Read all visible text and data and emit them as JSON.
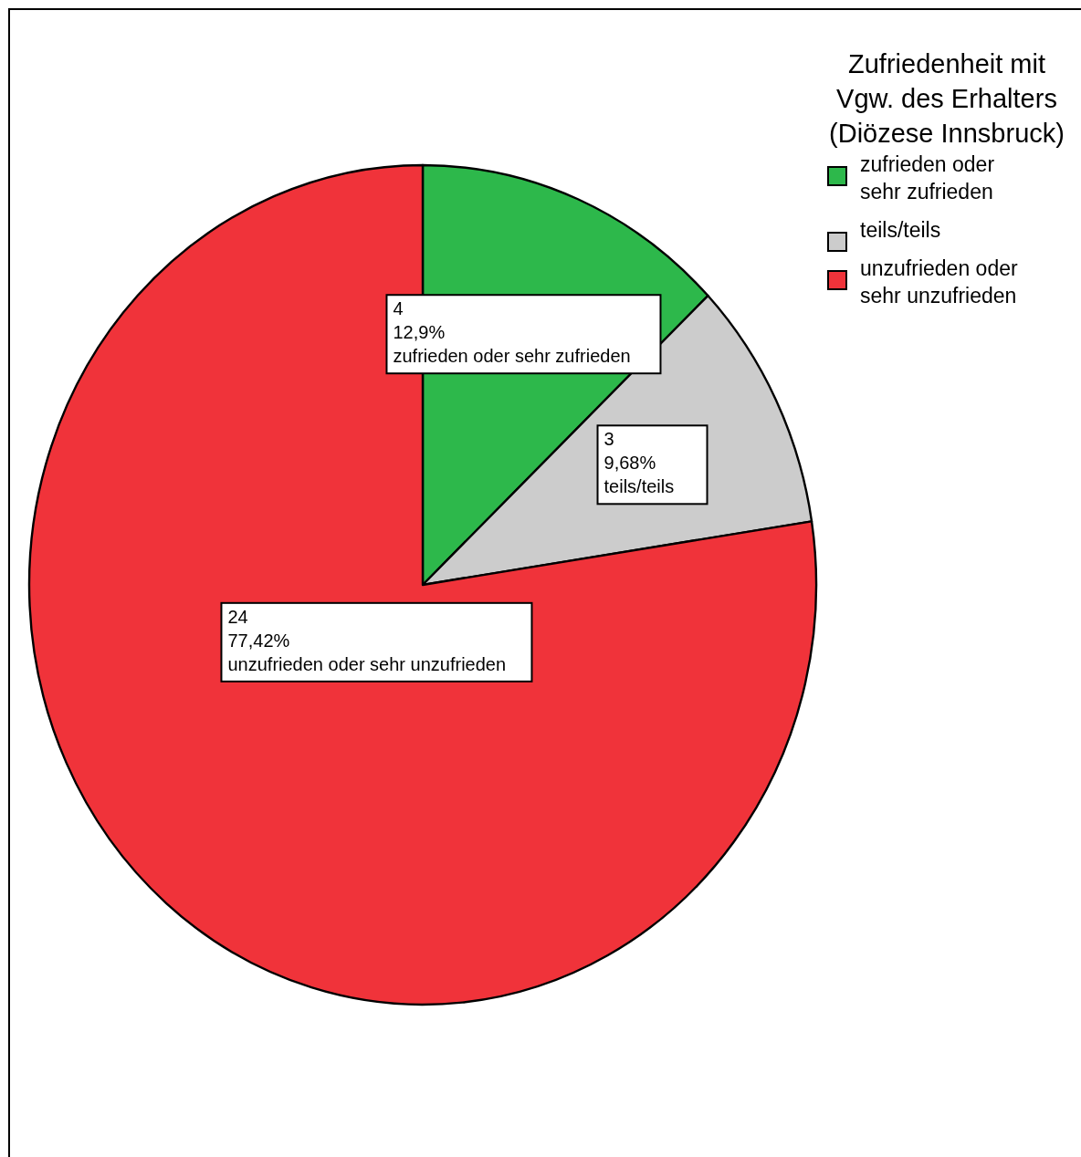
{
  "chart_data": {
    "type": "pie",
    "legend_title": "Zufriedenheit mit Vgw. des Erhalters (Diözese Innsbruck)",
    "categories": [
      "zufrieden oder sehr zufrieden",
      "teils/teils",
      "unzufrieden oder sehr unzufrieden"
    ],
    "values": [
      4,
      3,
      24
    ],
    "colors": [
      "#2db84b",
      "#cccccc",
      "#f0333a"
    ],
    "value_labels": [
      "4\n12,9%",
      "3\n9,68%",
      "24\n77,42%"
    ],
    "legend": "top right"
  }
}
